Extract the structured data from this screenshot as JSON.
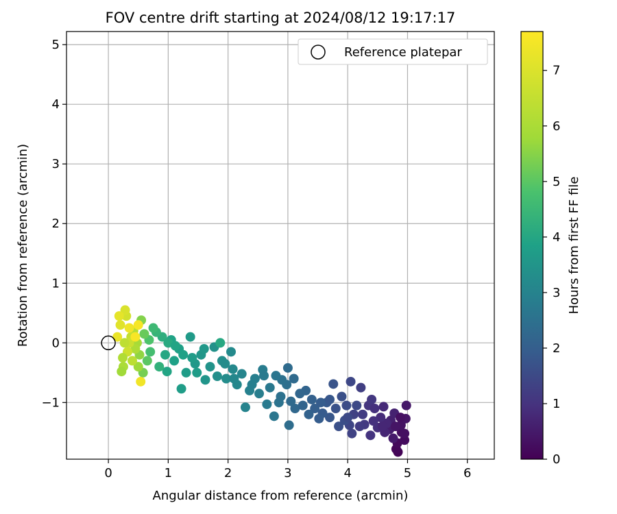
{
  "chart_data": {
    "type": "scatter",
    "title": "FOV centre drift starting at 2024/08/12 19:17:17",
    "xlabel": "Angular distance from reference (arcmin)",
    "ylabel": "Rotation from reference (arcmin)",
    "xlim": [
      -0.7,
      6.45
    ],
    "ylim": [
      -1.95,
      5.22
    ],
    "xticks": [
      "0",
      "1",
      "2",
      "3",
      "4",
      "5",
      "6"
    ],
    "yticks": [
      "−1",
      "0",
      "1",
      "2",
      "3",
      "4",
      "5"
    ],
    "grid": true,
    "legend": {
      "placement": "top-right",
      "entries": [
        "Reference platepar"
      ]
    },
    "reference_point": {
      "name": "Reference platepar",
      "x": 0,
      "y": 0
    },
    "colorbar": {
      "label": "Hours from first FF file",
      "range": [
        0,
        7.7
      ],
      "ticks": [
        "0",
        "1",
        "2",
        "3",
        "4",
        "5",
        "6",
        "7"
      ],
      "colormap": "viridis"
    },
    "series": [
      {
        "points": [
          {
            "x": 4.84,
            "y": -1.83,
            "c": 0.05
          },
          {
            "x": 4.81,
            "y": -1.78,
            "c": 0.1
          },
          {
            "x": 4.83,
            "y": -1.68,
            "c": 0.15
          },
          {
            "x": 4.95,
            "y": -1.63,
            "c": 0.2
          },
          {
            "x": 4.9,
            "y": -1.5,
            "c": 0.25
          },
          {
            "x": 4.95,
            "y": -1.52,
            "c": 0.3
          },
          {
            "x": 4.89,
            "y": -1.38,
            "c": 0.35
          },
          {
            "x": 4.97,
            "y": -1.27,
            "c": 0.4
          },
          {
            "x": 4.98,
            "y": -1.05,
            "c": 0.45
          },
          {
            "x": 4.76,
            "y": -1.6,
            "c": 0.5
          },
          {
            "x": 4.7,
            "y": -1.45,
            "c": 0.55
          },
          {
            "x": 4.72,
            "y": -1.3,
            "c": 0.6
          },
          {
            "x": 4.78,
            "y": -1.18,
            "c": 0.65
          },
          {
            "x": 4.62,
            "y": -1.5,
            "c": 0.7
          },
          {
            "x": 4.65,
            "y": -1.35,
            "c": 0.75
          },
          {
            "x": 4.6,
            "y": -1.07,
            "c": 0.8
          },
          {
            "x": 4.55,
            "y": -1.25,
            "c": 0.85
          },
          {
            "x": 4.5,
            "y": -1.42,
            "c": 0.9
          },
          {
            "x": 4.43,
            "y": -1.31,
            "c": 0.95
          },
          {
            "x": 4.38,
            "y": -1.55,
            "c": 1.0
          },
          {
            "x": 4.35,
            "y": -1.05,
            "c": 1.05
          },
          {
            "x": 4.4,
            "y": -0.95,
            "c": 1.1
          },
          {
            "x": 4.28,
            "y": -1.37,
            "c": 1.15
          },
          {
            "x": 4.2,
            "y": -1.4,
            "c": 1.2
          },
          {
            "x": 4.22,
            "y": -0.75,
            "c": 1.25
          },
          {
            "x": 4.1,
            "y": -1.2,
            "c": 1.3
          },
          {
            "x": 4.07,
            "y": -1.52,
            "c": 1.35
          },
          {
            "x": 4.03,
            "y": -1.38,
            "c": 1.4
          },
          {
            "x": 4.05,
            "y": -0.65,
            "c": 1.45
          },
          {
            "x": 4.15,
            "y": -1.05,
            "c": 1.5
          },
          {
            "x": 3.98,
            "y": -1.05,
            "c": 1.55
          },
          {
            "x": 3.95,
            "y": -1.3,
            "c": 1.6
          },
          {
            "x": 3.9,
            "y": -0.9,
            "c": 1.65
          },
          {
            "x": 3.8,
            "y": -1.1,
            "c": 1.7
          },
          {
            "x": 3.76,
            "y": -0.69,
            "c": 1.75
          },
          {
            "x": 3.7,
            "y": -1.25,
            "c": 1.8
          },
          {
            "x": 3.65,
            "y": -1.0,
            "c": 1.85
          },
          {
            "x": 3.58,
            "y": -1.18,
            "c": 1.9
          },
          {
            "x": 3.52,
            "y": -1.27,
            "c": 1.95
          },
          {
            "x": 3.45,
            "y": -1.1,
            "c": 2.0
          },
          {
            "x": 3.4,
            "y": -0.95,
            "c": 2.05
          },
          {
            "x": 3.35,
            "y": -1.2,
            "c": 2.1
          },
          {
            "x": 3.3,
            "y": -0.8,
            "c": 2.15
          },
          {
            "x": 3.2,
            "y": -0.85,
            "c": 2.2
          },
          {
            "x": 3.12,
            "y": -1.1,
            "c": 2.25
          },
          {
            "x": 3.05,
            "y": -0.98,
            "c": 2.3
          },
          {
            "x": 3.0,
            "y": -0.42,
            "c": 2.35
          },
          {
            "x": 3.02,
            "y": -1.38,
            "c": 2.4
          },
          {
            "x": 2.98,
            "y": -0.7,
            "c": 2.45
          },
          {
            "x": 2.9,
            "y": -0.62,
            "c": 2.5
          },
          {
            "x": 2.85,
            "y": -1.0,
            "c": 2.55
          },
          {
            "x": 2.8,
            "y": -0.55,
            "c": 2.6
          },
          {
            "x": 2.77,
            "y": -1.23,
            "c": 2.65
          },
          {
            "x": 2.7,
            "y": -0.75,
            "c": 2.7
          },
          {
            "x": 2.65,
            "y": -1.03,
            "c": 2.75
          },
          {
            "x": 2.58,
            "y": -0.45,
            "c": 2.8
          },
          {
            "x": 2.52,
            "y": -0.85,
            "c": 2.85
          },
          {
            "x": 2.45,
            "y": -0.6,
            "c": 2.9
          },
          {
            "x": 2.36,
            "y": -0.8,
            "c": 2.95
          },
          {
            "x": 2.29,
            "y": -1.08,
            "c": 3.0
          },
          {
            "x": 2.23,
            "y": -0.52,
            "c": 3.05
          },
          {
            "x": 2.15,
            "y": -0.7,
            "c": 3.1
          },
          {
            "x": 2.08,
            "y": -0.44,
            "c": 3.15
          },
          {
            "x": 2.05,
            "y": -0.15,
            "c": 3.2
          },
          {
            "x": 1.97,
            "y": -0.6,
            "c": 3.25
          },
          {
            "x": 1.9,
            "y": -0.3,
            "c": 3.3
          },
          {
            "x": 1.82,
            "y": -0.56,
            "c": 3.35
          },
          {
            "x": 1.77,
            "y": -0.07,
            "c": 3.4
          },
          {
            "x": 1.7,
            "y": -0.4,
            "c": 3.45
          },
          {
            "x": 1.62,
            "y": -0.62,
            "c": 3.5
          },
          {
            "x": 1.55,
            "y": -0.2,
            "c": 3.55
          },
          {
            "x": 1.45,
            "y": -0.35,
            "c": 3.6
          },
          {
            "x": 1.37,
            "y": 0.1,
            "c": 3.65
          },
          {
            "x": 1.3,
            "y": -0.5,
            "c": 3.7
          },
          {
            "x": 1.22,
            "y": -0.77,
            "c": 3.75
          },
          {
            "x": 1.18,
            "y": -0.1,
            "c": 3.8
          },
          {
            "x": 1.1,
            "y": -0.3,
            "c": 3.85
          },
          {
            "x": 1.05,
            "y": 0.05,
            "c": 3.9
          },
          {
            "x": 0.98,
            "y": -0.48,
            "c": 3.95
          },
          {
            "x": 0.95,
            "y": -0.2,
            "c": 4.0
          },
          {
            "x": 1.87,
            "y": 0.0,
            "c": 4.05
          },
          {
            "x": 2.4,
            "y": -0.7,
            "c": 2.9
          },
          {
            "x": 2.6,
            "y": -0.55,
            "c": 2.75
          },
          {
            "x": 2.88,
            "y": -0.9,
            "c": 2.5
          },
          {
            "x": 3.1,
            "y": -0.6,
            "c": 2.3
          },
          {
            "x": 3.55,
            "y": -1.0,
            "c": 1.95
          },
          {
            "x": 3.85,
            "y": -1.4,
            "c": 1.65
          },
          {
            "x": 4.25,
            "y": -1.2,
            "c": 1.2
          },
          {
            "x": 4.45,
            "y": -1.1,
            "c": 0.95
          },
          {
            "x": 4.8,
            "y": -1.4,
            "c": 0.4
          },
          {
            "x": 1.6,
            "y": -0.1,
            "c": 3.6
          },
          {
            "x": 1.48,
            "y": -0.5,
            "c": 3.7
          },
          {
            "x": 1.25,
            "y": -0.2,
            "c": 3.85
          },
          {
            "x": 0.9,
            "y": 0.1,
            "c": 4.2
          },
          {
            "x": 0.85,
            "y": -0.4,
            "c": 4.3
          },
          {
            "x": 0.8,
            "y": 0.18,
            "c": 4.4
          },
          {
            "x": 0.75,
            "y": 0.25,
            "c": 4.55
          },
          {
            "x": 0.7,
            "y": -0.15,
            "c": 4.7
          },
          {
            "x": 0.68,
            "y": 0.05,
            "c": 4.85
          },
          {
            "x": 0.65,
            "y": -0.3,
            "c": 5.0
          },
          {
            "x": 0.6,
            "y": 0.15,
            "c": 5.15
          },
          {
            "x": 0.58,
            "y": -0.5,
            "c": 5.3
          },
          {
            "x": 0.55,
            "y": 0.38,
            "c": 5.45
          },
          {
            "x": 0.52,
            "y": -0.2,
            "c": 5.6
          },
          {
            "x": 0.5,
            "y": -0.4,
            "c": 5.75
          },
          {
            "x": 0.48,
            "y": 0.0,
            "c": 5.9
          },
          {
            "x": 0.45,
            "y": -0.1,
            "c": 6.05
          },
          {
            "x": 0.42,
            "y": 0.2,
            "c": 6.2
          },
          {
            "x": 0.4,
            "y": -0.3,
            "c": 6.35
          },
          {
            "x": 0.38,
            "y": 0.1,
            "c": 6.5
          },
          {
            "x": 0.35,
            "y": 0.0,
            "c": 6.65
          },
          {
            "x": 0.3,
            "y": 0.45,
            "c": 6.8
          },
          {
            "x": 0.28,
            "y": 0.55,
            "c": 6.95
          },
          {
            "x": 0.25,
            "y": -0.4,
            "c": 6.0
          },
          {
            "x": 0.22,
            "y": -0.48,
            "c": 5.8
          },
          {
            "x": 0.2,
            "y": 0.3,
            "c": 7.1
          },
          {
            "x": 0.18,
            "y": 0.45,
            "c": 7.2
          },
          {
            "x": 0.15,
            "y": 0.1,
            "c": 7.3
          },
          {
            "x": 0.54,
            "y": -0.65,
            "c": 7.45
          },
          {
            "x": 0.5,
            "y": 0.3,
            "c": 7.55
          },
          {
            "x": 0.45,
            "y": 0.1,
            "c": 7.6
          },
          {
            "x": 0.35,
            "y": 0.25,
            "c": 7.4
          },
          {
            "x": 0.32,
            "y": -0.15,
            "c": 6.7
          },
          {
            "x": 0.27,
            "y": 0.0,
            "c": 6.4
          },
          {
            "x": 0.24,
            "y": -0.25,
            "c": 6.1
          },
          {
            "x": 1.0,
            "y": 0.0,
            "c": 4.1
          },
          {
            "x": 1.12,
            "y": -0.05,
            "c": 3.95
          },
          {
            "x": 1.4,
            "y": -0.25,
            "c": 3.7
          },
          {
            "x": 1.95,
            "y": -0.35,
            "c": 3.25
          },
          {
            "x": 2.1,
            "y": -0.6,
            "c": 3.1
          },
          {
            "x": 3.25,
            "y": -1.05,
            "c": 2.15
          },
          {
            "x": 3.7,
            "y": -0.95,
            "c": 1.8
          },
          {
            "x": 4.0,
            "y": -1.25,
            "c": 1.5
          },
          {
            "x": 4.58,
            "y": -1.4,
            "c": 0.75
          },
          {
            "x": 4.88,
            "y": -1.25,
            "c": 0.3
          }
        ]
      }
    ]
  }
}
